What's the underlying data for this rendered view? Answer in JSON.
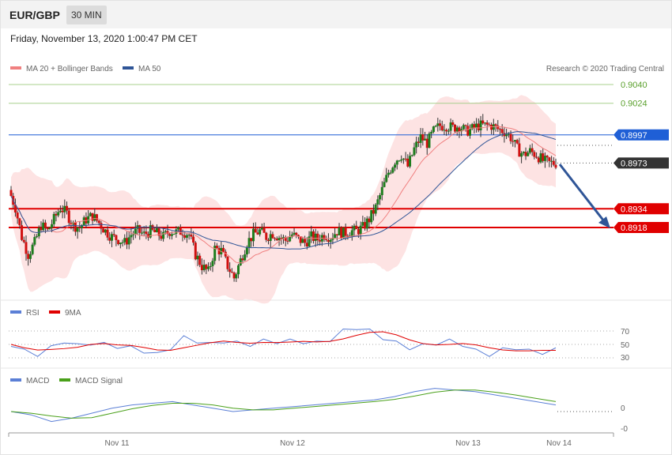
{
  "header": {
    "symbol": "EUR/GBP",
    "timeframe": "30 MIN"
  },
  "datetime": "Friday, November 13, 2020 1:00:47 PM CET",
  "credit": "Research © 2020 Trading Central",
  "legends": {
    "main": [
      {
        "label": "MA 20 + Bollinger Bands",
        "color": "#f08080"
      },
      {
        "label": "MA 50",
        "color": "#2f5597"
      }
    ],
    "rsi": [
      {
        "label": "RSI",
        "color": "#5b7fd6"
      },
      {
        "label": "9MA",
        "color": "#e00000"
      }
    ],
    "macd": [
      {
        "label": "MACD",
        "color": "#5b7fd6"
      },
      {
        "label": "MACD Signal",
        "color": "#4aa01a"
      }
    ]
  },
  "x_labels": [
    "Nov 11",
    "Nov 12",
    "Nov 13",
    "Nov 14"
  ],
  "rsi_levels": [
    "70",
    "50",
    "30"
  ],
  "macd_levels": [
    "0",
    "-0"
  ],
  "chart_data": {
    "type": "line",
    "title": "EUR/GBP",
    "ylim": [
      0.888,
      0.905
    ],
    "grid": false,
    "horizontal_levels": [
      {
        "value": 0.904,
        "label": "0.9040",
        "kind": "target",
        "color": "#5aa02c"
      },
      {
        "value": 0.9024,
        "label": "0.9024",
        "kind": "target",
        "color": "#5aa02c"
      },
      {
        "value": 0.8997,
        "label": "0.8997",
        "kind": "resistance",
        "color": "#1f5fd6"
      },
      {
        "value": 0.8973,
        "label": "0.8973",
        "kind": "last",
        "color": "#333333"
      },
      {
        "value": 0.8934,
        "label": "0.8934",
        "kind": "support",
        "color": "#e00000"
      },
      {
        "value": 0.8918,
        "label": "0.8918",
        "kind": "support",
        "color": "#e00000"
      }
    ],
    "price_path": [
      0.895,
      0.8935,
      0.891,
      0.8895,
      0.8905,
      0.892,
      0.8915,
      0.8925,
      0.8935,
      0.893,
      0.892,
      0.8918,
      0.8925,
      0.8928,
      0.8922,
      0.8915,
      0.891,
      0.8908,
      0.8905,
      0.8912,
      0.8915,
      0.8912,
      0.8915,
      0.8913,
      0.891,
      0.8915,
      0.8914,
      0.8915,
      0.8912,
      0.8895,
      0.8885,
      0.888,
      0.89,
      0.8898,
      0.8885,
      0.8875,
      0.889,
      0.8905,
      0.8912,
      0.8915,
      0.891,
      0.8913,
      0.891,
      0.8907,
      0.8912,
      0.8908,
      0.8905,
      0.891,
      0.8908,
      0.8912,
      0.891,
      0.8915,
      0.8913,
      0.8915,
      0.8915,
      0.8918,
      0.8925,
      0.8935,
      0.895,
      0.8965,
      0.8975,
      0.898,
      0.897,
      0.8985,
      0.8995,
      0.899,
      0.9,
      0.9005,
      0.9005,
      0.9003,
      0.9005,
      0.9,
      0.9002,
      0.9005,
      0.9005,
      0.9005,
      0.9002,
      0.9,
      0.8995,
      0.8985,
      0.898,
      0.8983,
      0.898,
      0.8975,
      0.8973
    ],
    "series": [
      {
        "values": [
          50,
          40,
          35,
          45,
          55,
          48,
          52,
          50,
          47,
          45,
          40,
          35,
          45,
          60,
          55,
          50,
          55,
          52,
          50,
          55,
          54,
          55,
          54,
          52,
          57,
          70,
          75,
          70,
          60,
          52,
          45,
          48,
          52,
          55,
          50,
          40,
          35,
          42,
          45,
          40,
          38,
          42
        ],
        "panel": "rsi",
        "ylim": [
          0,
          100
        ]
      },
      {
        "values": [
          0,
          -2,
          -6,
          -4,
          -1,
          2,
          4,
          5,
          6,
          4,
          2,
          0,
          1,
          2,
          3,
          4,
          5,
          6,
          7,
          9,
          12,
          14,
          13,
          12,
          10,
          8,
          6,
          4
        ],
        "panel": "macd"
      }
    ]
  }
}
